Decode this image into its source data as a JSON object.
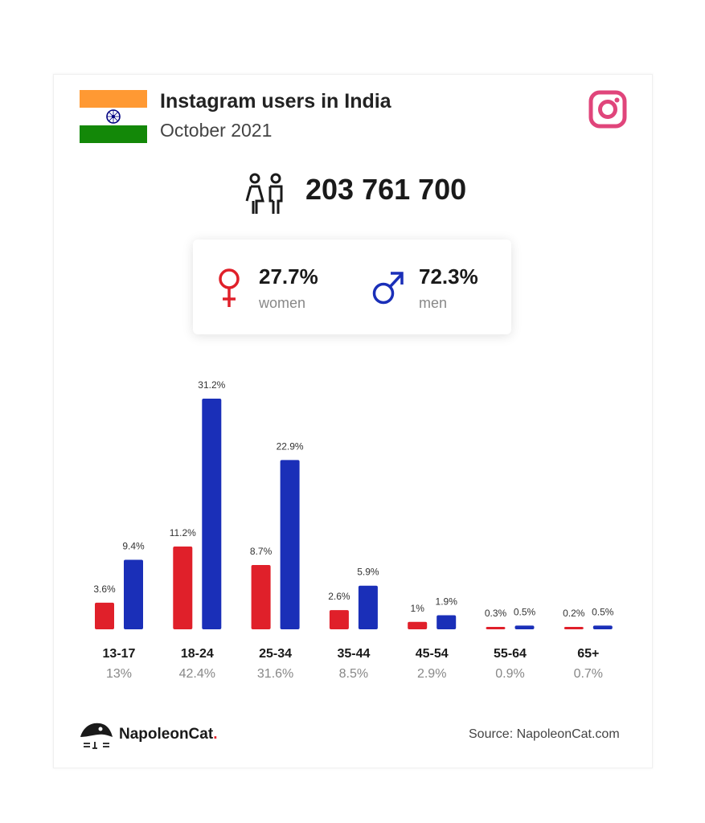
{
  "header": {
    "title": "Instagram users in India",
    "subtitle": "October 2021"
  },
  "total_users": "203 761 700",
  "gender": {
    "women": {
      "pct": "27.7%",
      "label": "women"
    },
    "men": {
      "pct": "72.3%",
      "label": "men"
    }
  },
  "icons": {
    "flag": "india-flag-icon",
    "brand": "instagram-icon",
    "users": "users-icon",
    "female": "female-symbol-icon",
    "male": "male-symbol-icon",
    "logo": "napoleoncat-logo-icon"
  },
  "colors": {
    "women": "#e0202a",
    "men": "#1a2fb8",
    "instagram": "#e0457b",
    "flag_saffron": "#ff9933",
    "flag_green": "#138808",
    "flag_chakra": "#000080"
  },
  "chart_data": {
    "type": "bar",
    "categories": [
      "13-17",
      "18-24",
      "25-34",
      "35-44",
      "45-54",
      "55-64",
      "65+"
    ],
    "category_totals": [
      "13%",
      "42.4%",
      "31.6%",
      "8.5%",
      "2.9%",
      "0.9%",
      "0.7%"
    ],
    "series": [
      {
        "name": "women",
        "values": [
          3.6,
          11.2,
          8.7,
          2.6,
          1,
          0.3,
          0.2
        ],
        "labels": [
          "3.6%",
          "11.2%",
          "8.7%",
          "2.6%",
          "1%",
          "0.3%",
          "0.2%"
        ]
      },
      {
        "name": "men",
        "values": [
          9.4,
          31.2,
          22.9,
          5.9,
          1.9,
          0.5,
          0.5
        ],
        "labels": [
          "9.4%",
          "31.2%",
          "22.9%",
          "5.9%",
          "1.9%",
          "0.5%",
          "0.5%"
        ]
      }
    ],
    "ylim": [
      0,
      31.2
    ],
    "grid": false
  },
  "footer": {
    "brand": "NapoleonCat",
    "brand_dot": ".",
    "source": "Source: NapoleonCat.com"
  }
}
